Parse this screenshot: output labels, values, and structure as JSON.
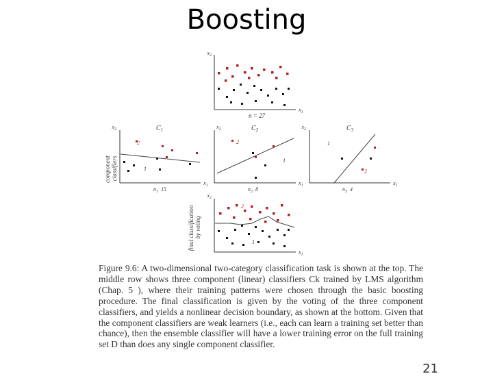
{
  "slide": {
    "title": "Boosting",
    "page_number": "21"
  },
  "figure": {
    "top_plot": {
      "x_axis": "x",
      "x_sub": "1",
      "y_axis": "x",
      "y_sub": "2",
      "n_label": "n = 27"
    },
    "left_plot": {
      "title": "C",
      "title_sub": "1",
      "y_axis": "x",
      "y_sub": "2",
      "x_axis": "x",
      "x_sub": "1",
      "n_label": "n",
      "n_sub": "1",
      "n_value": "15",
      "class_1": "1",
      "class_2": "2"
    },
    "middle_plot": {
      "title": "C",
      "title_sub": "2",
      "y_axis": "x",
      "y_sub": "2",
      "x_axis": "x",
      "x_sub": "1",
      "n_label": "n",
      "n_sub": "2",
      "n_value": "8",
      "class_1": "1",
      "class_2": "2"
    },
    "right_plot": {
      "title": "C",
      "title_sub": "3",
      "y_axis": "x",
      "y_sub": "2",
      "x_axis": "x",
      "x_sub": "1",
      "n_label": "n",
      "n_sub": "3",
      "n_value": "4",
      "class_1": "1",
      "class_2": "2"
    },
    "bottom_plot": {
      "y_axis": "x",
      "y_sub": "2",
      "x_axis": "x",
      "x_sub": "1",
      "class_1": "1",
      "class_2": "2"
    },
    "row_label_component": [
      "component",
      "classifiers"
    ],
    "row_label_final": [
      "final classification",
      "by voting"
    ]
  },
  "caption": {
    "lead": "Figure 9.6:",
    "text": " A two-dimensional two-category classification task is shown at the top. The middle row shows three component (linear) classifiers Ck trained by LMS algorithm (Chap. 5 ), where their training patterns were chosen through the basic boosting procedure. The final classification is given by the voting of the three component classifiers, and yields a nonlinear decision boundary, as shown at the bottom. Given that the component classifiers are weak learners (i.e., each can learn a training set better than chance), then the ensemble classifier will have a lower training error on the full training set D than does any single component classifier."
  }
}
